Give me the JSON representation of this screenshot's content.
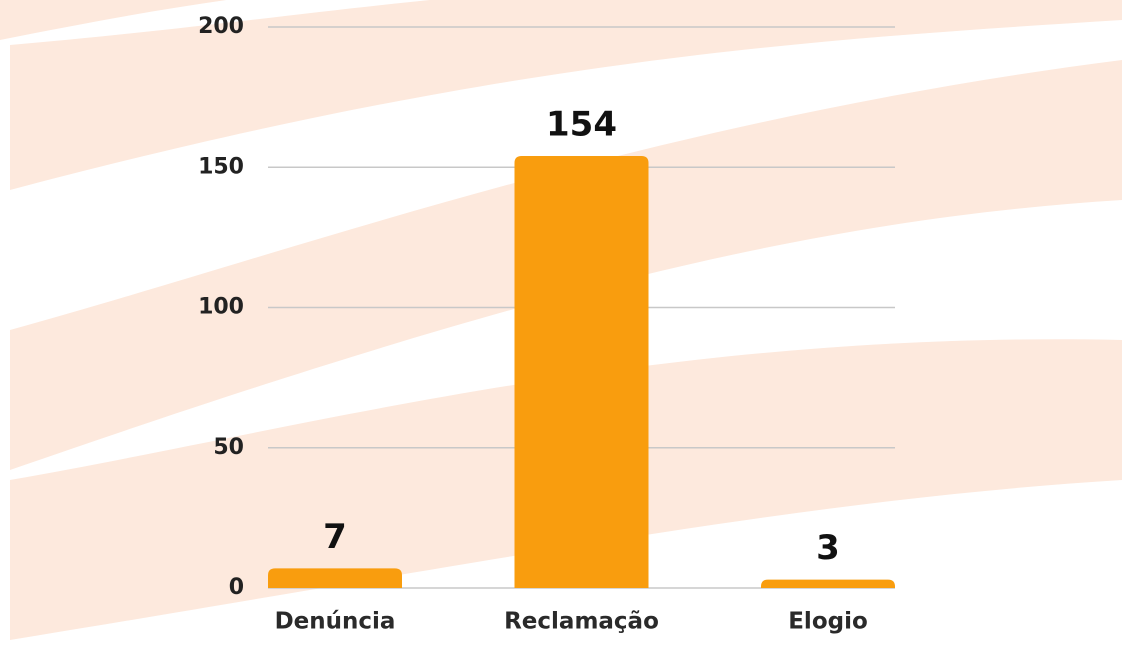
{
  "chart_data": {
    "type": "bar",
    "categories": [
      "Denúncia",
      "Reclamação",
      "Elogio"
    ],
    "values": [
      7,
      154,
      3
    ],
    "color": "#f99d0e",
    "ylim": [
      0,
      200
    ],
    "yticks": [
      0,
      50,
      100,
      150,
      200
    ],
    "grid": true
  }
}
